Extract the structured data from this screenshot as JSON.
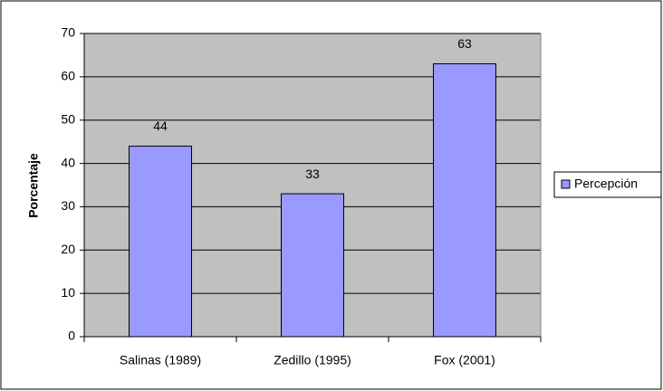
{
  "chart_data": {
    "type": "bar",
    "y_label": "Porcentaje",
    "categories": [
      "Salinas (1989)",
      "Zedillo (1995)",
      "Fox (2001)"
    ],
    "series": [
      {
        "name": "Percepción",
        "color": "#9999ff",
        "values": [
          44,
          33,
          63
        ]
      }
    ],
    "ylim": [
      0,
      70
    ],
    "yticks": [
      0,
      10,
      20,
      30,
      40,
      50,
      60,
      70
    ],
    "grid": true,
    "legend": "right",
    "plot_background": "#c0c0c0"
  }
}
